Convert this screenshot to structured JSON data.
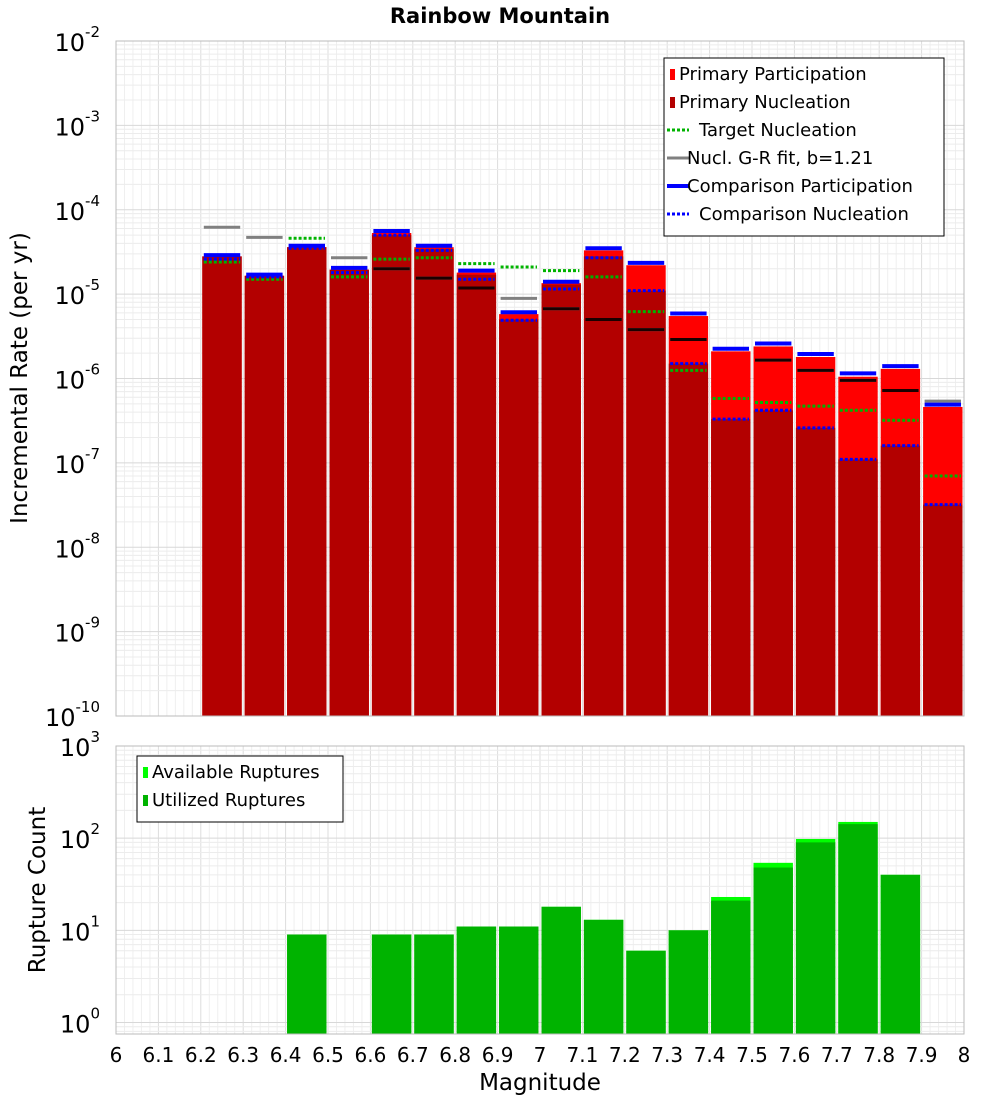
{
  "chart_data": [
    {
      "type": "bar",
      "title": "Rainbow Mountain",
      "xlabel": "",
      "ylabel": "Incremental Rate (per yr)",
      "yscale": "log",
      "ylim": [
        1e-10,
        0.01
      ],
      "xlim": [
        6.0,
        8.0
      ],
      "bin_width": 0.1,
      "grid": true,
      "legend_position": "top-right",
      "y_ticks": [
        {
          "base": "10",
          "exp": "-2",
          "value": 0.01
        },
        {
          "base": "10",
          "exp": "-3",
          "value": 0.001
        },
        {
          "base": "10",
          "exp": "-4",
          "value": 0.0001
        },
        {
          "base": "10",
          "exp": "-5",
          "value": 1e-05
        },
        {
          "base": "10",
          "exp": "-6",
          "value": 1e-06
        },
        {
          "base": "10",
          "exp": "-7",
          "value": 1e-07
        },
        {
          "base": "10",
          "exp": "-8",
          "value": 1e-08
        },
        {
          "base": "10",
          "exp": "-9",
          "value": 1e-09
        },
        {
          "base": "10",
          "exp": "-10",
          "value": 1e-10
        }
      ],
      "x": [
        6.25,
        6.35,
        6.45,
        6.55,
        6.65,
        6.75,
        6.85,
        6.95,
        7.05,
        7.15,
        7.25,
        7.35,
        7.45,
        7.55,
        7.65,
        7.75,
        7.85,
        7.95
      ],
      "series": [
        {
          "name": "Primary Participation",
          "style": "bar",
          "color": "#ff0000",
          "values": [
            2.8e-05,
            1.65e-05,
            3.6e-05,
            1.95e-05,
            5.3e-05,
            3.6e-05,
            1.8e-05,
            5.8e-06,
            1.35e-05,
            3.3e-05,
            2.2e-05,
            5.5e-06,
            2.1e-06,
            2.4e-06,
            1.8e-06,
            1.05e-06,
            1.3e-06,
            4.6e-07
          ]
        },
        {
          "name": "Primary Nucleation",
          "style": "bar",
          "color": "#b30000",
          "values": [
            2.8e-05,
            1.65e-05,
            3.6e-05,
            1.95e-05,
            5e-05,
            3.4e-05,
            1.7e-05,
            5e-06,
            1.3e-05,
            2.8e-05,
            1.1e-05,
            1.5e-06,
            3.3e-07,
            4.2e-07,
            2.6e-07,
            1.1e-07,
            1.6e-07,
            3.2e-08
          ]
        },
        {
          "name": "Target Nucleation",
          "style": "dotted-line",
          "color": "#00b300",
          "values": [
            2.4e-05,
            1.5e-05,
            4.6e-05,
            1.6e-05,
            2.6e-05,
            2.7e-05,
            2.3e-05,
            2.1e-05,
            1.9e-05,
            1.6e-05,
            6.2e-06,
            1.25e-06,
            5.8e-07,
            5.2e-07,
            4.7e-07,
            4.2e-07,
            3.2e-07,
            7e-08
          ]
        },
        {
          "name": "Nucl. G-R fit, b=1.21",
          "style": "line",
          "color": "#808080",
          "values": [
            6.2e-05,
            4.7e-05,
            null,
            2.7e-05,
            2e-05,
            1.55e-05,
            1.18e-05,
            8.9e-06,
            6.7e-06,
            5e-06,
            3.8e-06,
            2.9e-06,
            null,
            1.65e-06,
            1.25e-06,
            9.5e-07,
            7.2e-07,
            5.4e-07
          ]
        },
        {
          "name": "Comparison Participation",
          "style": "line",
          "color": "#0000ff",
          "values": [
            2.9e-05,
            1.7e-05,
            3.75e-05,
            2.05e-05,
            5.6e-05,
            3.75e-05,
            1.9e-05,
            6.1e-06,
            1.4e-05,
            3.5e-05,
            2.35e-05,
            5.9e-06,
            2.25e-06,
            2.6e-06,
            1.95e-06,
            1.15e-06,
            1.4e-06,
            4.9e-07
          ]
        },
        {
          "name": "Comparison Nucleation",
          "style": "dotted-line",
          "color": "#0000ff",
          "values": [
            2.6e-05,
            1.6e-05,
            3.5e-05,
            1.8e-05,
            5e-05,
            3.3e-05,
            1.5e-05,
            4.9e-06,
            1.15e-05,
            2.7e-05,
            1.1e-05,
            1.5e-06,
            3.3e-07,
            4.2e-07,
            2.6e-07,
            1.1e-07,
            1.6e-07,
            3.2e-08
          ]
        }
      ]
    },
    {
      "type": "bar",
      "title": "",
      "xlabel": "Magnitude",
      "ylabel": "Rupture Count",
      "yscale": "log",
      "ylim": [
        0.75,
        1000
      ],
      "xlim": [
        6.0,
        8.0
      ],
      "bin_width": 0.1,
      "grid": true,
      "legend_position": "top-left",
      "y_ticks": [
        {
          "base": "10",
          "exp": "3",
          "value": 1000
        },
        {
          "base": "10",
          "exp": "2",
          "value": 100
        },
        {
          "base": "10",
          "exp": "1",
          "value": 10
        },
        {
          "base": "10",
          "exp": "0",
          "value": 1
        }
      ],
      "x_ticks": [
        "6",
        "6.1",
        "6.2",
        "6.3",
        "6.4",
        "6.5",
        "6.6",
        "6.7",
        "6.8",
        "6.9",
        "7",
        "7.1",
        "7.2",
        "7.3",
        "7.4",
        "7.5",
        "7.6",
        "7.7",
        "7.8",
        "7.9",
        "8"
      ],
      "x": [
        6.25,
        6.35,
        6.45,
        6.55,
        6.65,
        6.75,
        6.85,
        6.95,
        7.05,
        7.15,
        7.25,
        7.35,
        7.45,
        7.55,
        7.65,
        7.75,
        7.85,
        7.95
      ],
      "series": [
        {
          "name": "Available Ruptures",
          "style": "bar",
          "color": "#00ff00",
          "values": [
            null,
            null,
            9,
            null,
            9,
            9,
            11,
            11,
            18,
            13,
            6,
            10,
            23,
            54,
            98,
            150,
            40,
            null
          ]
        },
        {
          "name": "Utilized Ruptures",
          "style": "bar",
          "color": "#00b300",
          "values": [
            null,
            null,
            9,
            null,
            9,
            9,
            11,
            11,
            18,
            13,
            6,
            10,
            21,
            48,
            90,
            142,
            40,
            null
          ]
        }
      ]
    }
  ]
}
